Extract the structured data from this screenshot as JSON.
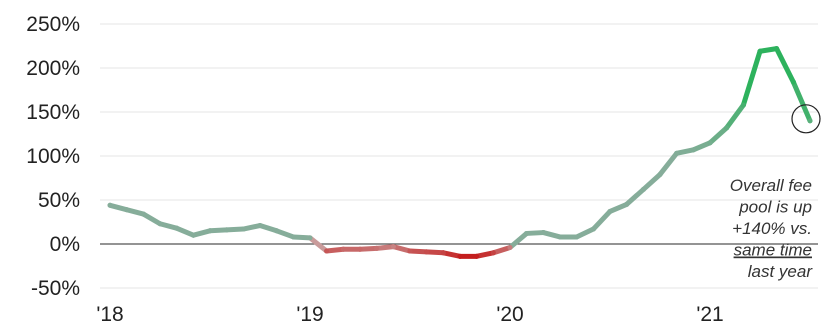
{
  "chart_data": {
    "type": "line",
    "title": "",
    "xlabel": "",
    "ylabel": "",
    "ylim": [
      -50,
      250
    ],
    "y_ticks": [
      250,
      200,
      150,
      100,
      50,
      0,
      -50
    ],
    "y_tick_labels": [
      "250%",
      "200%",
      "150%",
      "100%",
      "50%",
      "0%",
      "-50%"
    ],
    "x_ticks": [
      2018,
      2019,
      2020,
      2021
    ],
    "x_tick_labels": [
      "'18",
      "'19",
      "'20",
      "'21"
    ],
    "grid": "horizontal",
    "colors": {
      "positive": "#86ad9a",
      "negative": "#c41e1e",
      "surge": "#2db25d",
      "zero_line": "#555555",
      "grid": "#e6e6e6"
    },
    "series": [
      {
        "x": [
          2018.0,
          2018.083,
          2018.167,
          2018.25,
          2018.333,
          2018.417,
          2018.5,
          2018.583,
          2018.667,
          2018.75,
          2018.833,
          2018.917,
          2019.0,
          2019.083,
          2019.167,
          2019.25,
          2019.333,
          2019.417,
          2019.5,
          2019.583,
          2019.667,
          2019.75,
          2019.833,
          2019.917,
          2020.0,
          2020.083,
          2020.167,
          2020.25,
          2020.333,
          2020.417,
          2020.5,
          2020.583,
          2020.667,
          2020.75,
          2020.833,
          2020.917,
          2021.0,
          2021.083,
          2021.167,
          2021.25,
          2021.333,
          2021.417,
          2021.5
        ],
        "values": [
          44,
          39,
          34,
          23,
          18,
          10,
          15,
          16,
          17,
          21,
          15,
          8,
          7,
          -8,
          -6,
          -6,
          -5,
          -3,
          -8,
          -9,
          -10,
          -14,
          -14,
          -10,
          -4,
          12,
          13,
          8,
          8,
          17,
          37,
          45,
          62,
          79,
          103,
          107,
          115,
          132,
          158,
          219,
          222,
          184,
          140
        ]
      }
    ],
    "annotation": {
      "lines": [
        "Overall fee",
        "pool is up",
        "+140% vs.",
        "same time",
        "last year"
      ],
      "underlined_line": 3,
      "marker_at": {
        "x": 2021.5,
        "y": 140
      }
    }
  }
}
